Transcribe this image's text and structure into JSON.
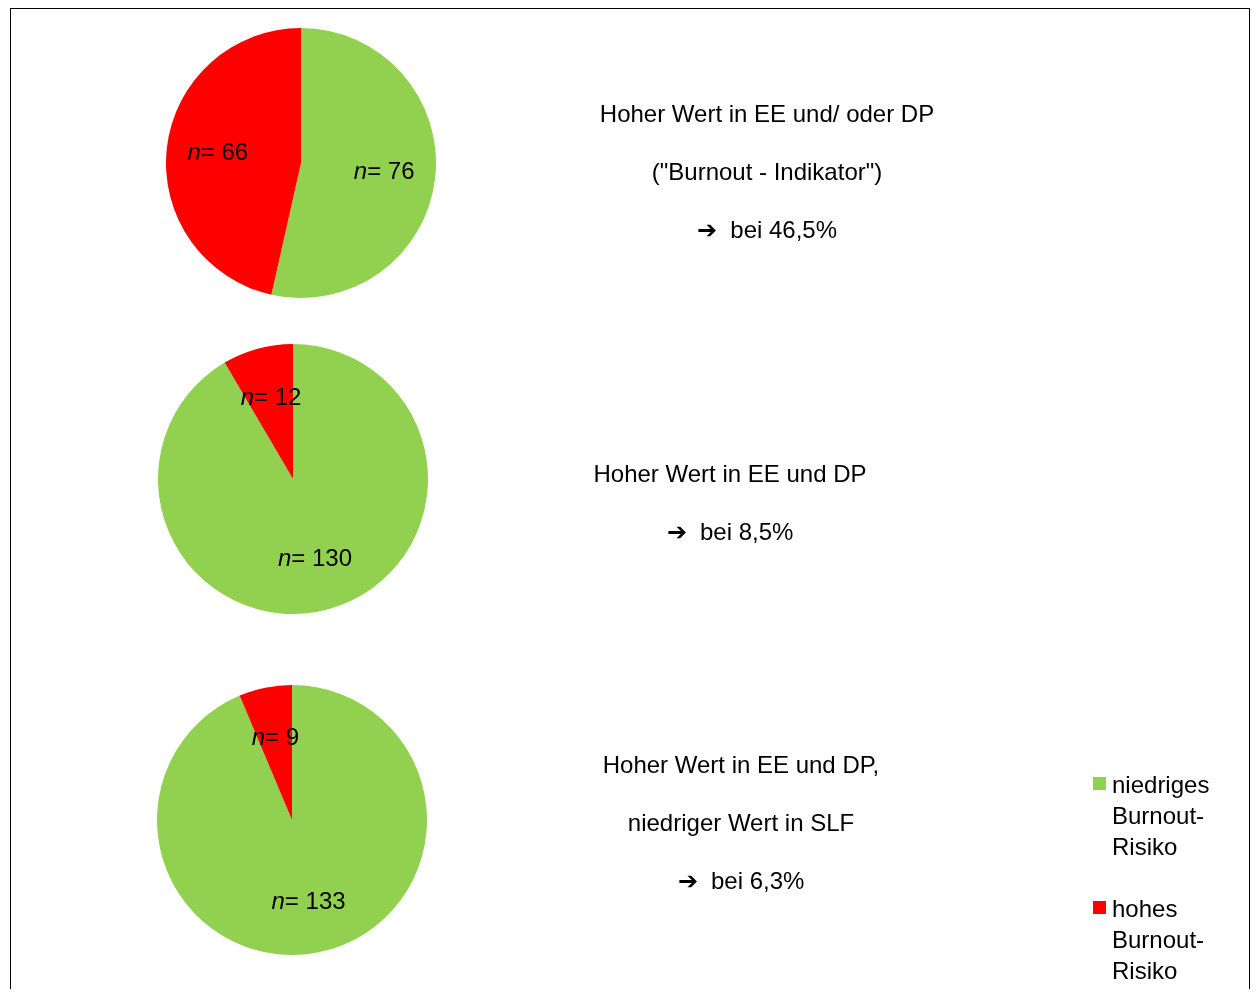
{
  "chart_data": [
    {
      "type": "pie",
      "categories": [
        null,
        null
      ],
      "values": [
        76,
        66
      ],
      "colors": [
        "#92d050",
        "#ff0000"
      ],
      "value_labels": [
        "n= 76",
        "n= 66"
      ],
      "legend": false,
      "annotations": [
        "Hoher Wert in EE und/ oder DP",
        "(\"Burnout - Indikator\")",
        "➔  bei 46,5%"
      ]
    },
    {
      "type": "pie",
      "categories": [
        null,
        null
      ],
      "values": [
        130,
        12
      ],
      "colors": [
        "#92d050",
        "#ff0000"
      ],
      "value_labels": [
        "n= 130",
        "n= 12"
      ],
      "legend": false,
      "annotations": [
        "Hoher Wert in EE und DP",
        "➔  bei 8,5%"
      ]
    },
    {
      "type": "pie",
      "categories": [
        "niedriges Burnout-Risiko",
        "hohes Burnout-Risiko"
      ],
      "values": [
        133,
        9
      ],
      "colors": [
        "#92d050",
        "#ff0000"
      ],
      "value_labels": [
        "n= 133",
        "n= 9"
      ],
      "legend": "right",
      "annotations": [
        "Hoher Wert in EE und DP,",
        "niedriger Wert in SLF",
        "➔  bei 6,3%"
      ]
    }
  ]
}
